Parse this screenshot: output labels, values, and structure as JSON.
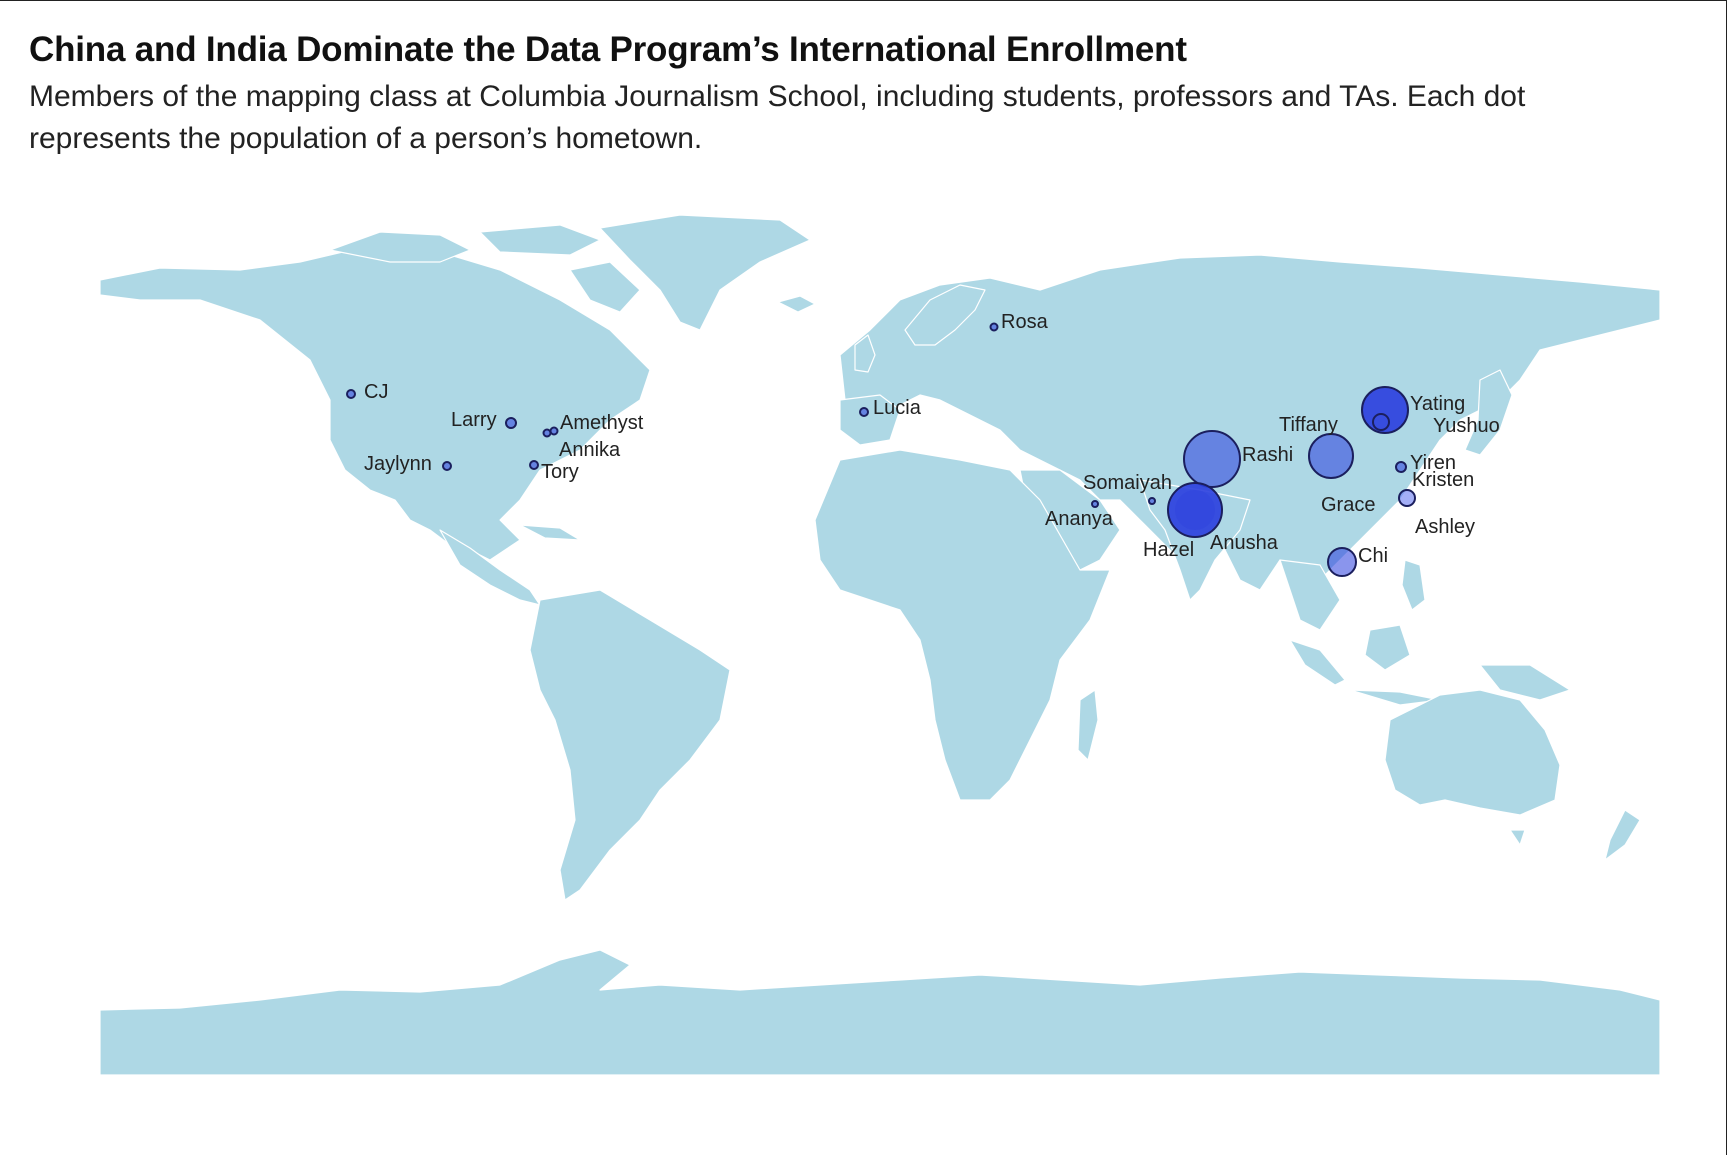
{
  "title": "China and India Dominate the Data Program’s International Enrollment",
  "subtitle": "Members of the mapping class at Columbia Journalism School, including students, professors and TAs. Each dot represents the population of a person’s hometown.",
  "colors": {
    "land": "#aed8e5",
    "dot_fill": "#2a3ede",
    "dot_stroke": "#1b1f5e"
  },
  "people": [
    {
      "name": "CJ"
    },
    {
      "name": "Larry"
    },
    {
      "name": "Amethyst"
    },
    {
      "name": "Annika"
    },
    {
      "name": "Tory"
    },
    {
      "name": "Jaylynn"
    },
    {
      "name": "Rosa"
    },
    {
      "name": "Lucia"
    },
    {
      "name": "Somaiyah"
    },
    {
      "name": "Ananya"
    },
    {
      "name": "Rashi"
    },
    {
      "name": "Hazel"
    },
    {
      "name": "Anusha"
    },
    {
      "name": "Tiffany"
    },
    {
      "name": "Grace"
    },
    {
      "name": "Chi"
    },
    {
      "name": "Yating"
    },
    {
      "name": "Yushuo"
    },
    {
      "name": "Yiren"
    },
    {
      "name": "Kristen"
    },
    {
      "name": "Ashley"
    }
  ]
}
